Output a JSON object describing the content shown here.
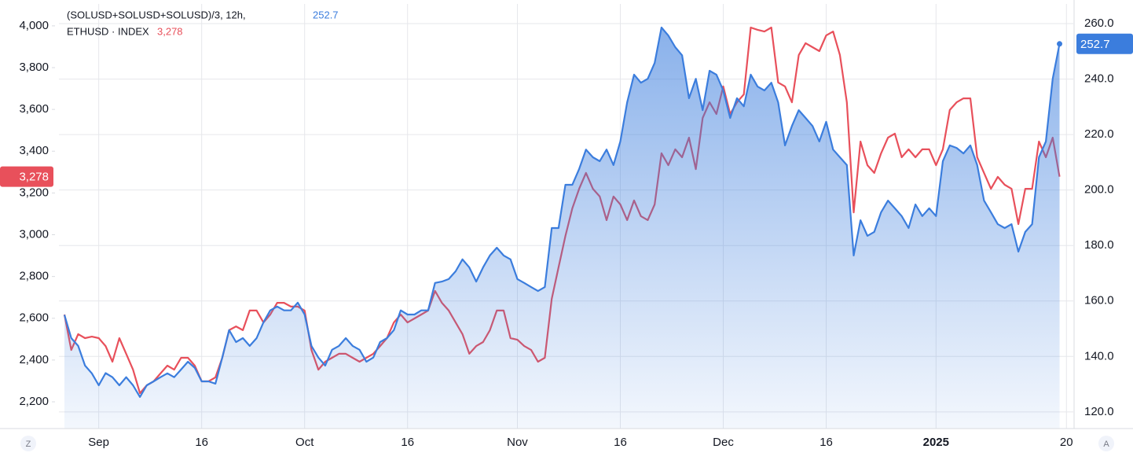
{
  "chart_data": {
    "type": "line",
    "x": [
      -5,
      -4,
      -3,
      -2,
      -1,
      0,
      1,
      2,
      3,
      4,
      5,
      6,
      7,
      8,
      9,
      10,
      11,
      12,
      13,
      14,
      15,
      16,
      17,
      18,
      19,
      20,
      21,
      22,
      23,
      24,
      25,
      26,
      27,
      28,
      29,
      30,
      31,
      32,
      33,
      34,
      35,
      36,
      37,
      38,
      39,
      40,
      41,
      42,
      43,
      44,
      45,
      46,
      47,
      48,
      49,
      50,
      51,
      52,
      53,
      54,
      55,
      56,
      57,
      58,
      59,
      60,
      61,
      62,
      63,
      64,
      65,
      66,
      67,
      68,
      69,
      70,
      71,
      72,
      73,
      74,
      75,
      76,
      77,
      78,
      79,
      80,
      81,
      82,
      83,
      84,
      85,
      86,
      87,
      88,
      89,
      90,
      91,
      92,
      93,
      94,
      95,
      96,
      97,
      98,
      99,
      100,
      101,
      102,
      103,
      104,
      105,
      106,
      107,
      108,
      109,
      110,
      111,
      112,
      113,
      114,
      115,
      116,
      117,
      118,
      119,
      120,
      121,
      122,
      123,
      124,
      125,
      126,
      127,
      128,
      129,
      130,
      131,
      132,
      133,
      134,
      135,
      136,
      137,
      138,
      139,
      140
    ],
    "series": [
      {
        "name": "ETHUSD · INDEX",
        "color": "#e8505b",
        "axis": "y",
        "values": [
          2618,
          2448,
          2524,
          2505,
          2512,
          2505,
          2467,
          2392,
          2505,
          2430,
          2354,
          2241,
          2279,
          2298,
          2336,
          2373,
          2354,
          2411,
          2411,
          2373,
          2298,
          2298,
          2317,
          2411,
          2543,
          2561,
          2543,
          2637,
          2637,
          2580,
          2618,
          2674,
          2674,
          2656,
          2656,
          2637,
          2448,
          2354,
          2392,
          2411,
          2430,
          2430,
          2411,
          2392,
          2411,
          2430,
          2467,
          2505,
          2580,
          2618,
          2580,
          2599,
          2618,
          2637,
          2731,
          2674,
          2637,
          2580,
          2524,
          2430,
          2467,
          2486,
          2543,
          2637,
          2637,
          2505,
          2497,
          2467,
          2448,
          2392,
          2411,
          2693,
          2844,
          2994,
          3126,
          3220,
          3296,
          3220,
          3183,
          3070,
          3183,
          3145,
          3070,
          3164,
          3089,
          3070,
          3145,
          3390,
          3333,
          3409,
          3371,
          3465,
          3314,
          3559,
          3634,
          3578,
          3710,
          3578,
          3634,
          3672,
          3992,
          3981,
          3973,
          3992,
          3729,
          3710,
          3634,
          3860,
          3917,
          3898,
          3879,
          3954,
          3973,
          3860,
          3634,
          3107,
          3446,
          3333,
          3296,
          3390,
          3465,
          3484,
          3371,
          3409,
          3371,
          3409,
          3409,
          3333,
          3409,
          3597,
          3634,
          3653,
          3653,
          3371,
          3296,
          3220,
          3277,
          3239,
          3220,
          3051,
          3220,
          3220,
          3446,
          3371,
          3465,
          3278
        ],
        "value_labels": [
          null,
          null,
          null,
          null,
          null,
          null,
          null,
          null,
          null,
          null,
          null,
          null,
          null,
          null,
          null,
          null,
          null,
          null,
          null,
          null,
          null,
          null,
          null,
          null,
          null,
          null,
          null,
          null,
          null,
          null,
          null,
          null,
          null,
          null,
          null,
          null,
          null,
          null,
          null,
          null,
          null,
          null,
          null,
          null,
          null,
          null,
          null,
          null,
          null,
          null,
          null,
          null,
          null,
          null,
          null,
          null,
          null,
          null,
          null,
          null,
          null,
          null,
          null,
          null,
          null,
          null,
          null,
          null,
          null,
          null,
          null,
          null,
          null,
          null,
          null,
          null,
          null,
          null,
          null,
          null,
          null,
          null,
          null,
          null,
          null,
          null,
          null,
          null,
          null,
          null,
          null,
          null,
          null,
          null,
          null,
          null,
          null,
          null,
          null,
          null,
          null,
          null,
          null,
          null,
          null,
          null,
          null,
          null,
          null,
          null,
          null,
          null,
          null,
          null,
          null,
          null,
          null,
          null,
          null,
          null,
          null,
          null,
          null,
          null,
          null,
          null,
          null,
          null,
          null,
          null,
          null,
          null,
          null,
          null,
          null,
          null,
          null,
          null,
          null,
          null,
          null,
          null,
          null,
          null,
          null,
          "3,278"
        ]
      },
      {
        "name": "(SOLUSD+SOLUSD+SOLUSD)/3, 12h,",
        "color": "#3b7ddd",
        "axis": "y2",
        "area": true,
        "values": [
          155,
          146.6,
          143.8,
          136.7,
          133.9,
          129.6,
          134,
          132.5,
          129.6,
          132.5,
          129.6,
          125.4,
          129.6,
          131,
          132.5,
          133.9,
          132.5,
          135.3,
          138.1,
          135.9,
          131,
          131,
          130.2,
          139.6,
          149.5,
          145.2,
          146.6,
          143.8,
          146.6,
          152.3,
          156.6,
          158,
          156.6,
          156.6,
          159.4,
          155.1,
          143.8,
          139.6,
          136.7,
          142.4,
          143.8,
          146.6,
          143.8,
          142.4,
          138.1,
          139.6,
          145.2,
          146.6,
          149.5,
          156.6,
          155.1,
          155.1,
          156.6,
          156.6,
          166.5,
          167,
          167.9,
          170.7,
          175,
          172.1,
          167,
          172.1,
          176.4,
          179.2,
          176.4,
          175,
          167.9,
          166.5,
          165,
          163.6,
          165,
          186.3,
          186.3,
          201.9,
          201.9,
          207.6,
          214.6,
          211.8,
          210.4,
          214.6,
          209,
          217.5,
          231.6,
          241.6,
          238.7,
          240.1,
          245.8,
          258.6,
          255.7,
          251.5,
          248.6,
          233.1,
          240.1,
          228.8,
          243,
          241.6,
          235.9,
          226,
          233.1,
          230.2,
          241.6,
          237.3,
          235.9,
          238.7,
          231.6,
          216.1,
          223.1,
          228.8,
          226,
          223.1,
          217.5,
          224.6,
          214.6,
          211.8,
          209,
          176.4,
          189.1,
          183.5,
          184.9,
          192,
          196.2,
          193.4,
          190.6,
          186.3,
          194.8,
          190.6,
          193.4,
          190.6,
          210.4,
          216.1,
          215.2,
          213.2,
          216.1,
          209,
          196.2,
          192,
          187.7,
          186.3,
          187.7,
          177.8,
          184.9,
          187.7,
          211.8,
          217.5,
          240.1,
          252.7
        ]
      }
    ],
    "xlim": [
      -5.8,
      142
    ],
    "xticks": [
      {
        "value": 0,
        "label": "Sep"
      },
      {
        "value": 15,
        "label": "16"
      },
      {
        "value": 30,
        "label": "Oct"
      },
      {
        "value": 45,
        "label": "16"
      },
      {
        "value": 61,
        "label": "Nov"
      },
      {
        "value": 76,
        "label": "16"
      },
      {
        "value": 91,
        "label": "Dec"
      },
      {
        "value": 106,
        "label": "16"
      },
      {
        "value": 122,
        "label": "2025"
      },
      {
        "value": 141,
        "label": "20"
      }
    ],
    "ylim": [
      2072,
      4105
    ],
    "yticks": [
      {
        "value": 4000,
        "label": "4,000"
      },
      {
        "value": 3800,
        "label": "3,800"
      },
      {
        "value": 3600,
        "label": "3,600"
      },
      {
        "value": 3400,
        "label": "3,400"
      },
      {
        "value": 3200,
        "label": "3,200"
      },
      {
        "value": 3000,
        "label": "3,000"
      },
      {
        "value": 2800,
        "label": "2,800"
      },
      {
        "value": 2600,
        "label": "2,600"
      },
      {
        "value": 2400,
        "label": "2,400"
      },
      {
        "value": 2200,
        "label": "2,200"
      }
    ],
    "y2lim": [
      114,
      267.1
    ],
    "y2ticks": [
      {
        "value": 260,
        "label": "260.0"
      },
      {
        "value": 240,
        "label": "240.0"
      },
      {
        "value": 220,
        "label": "220.0"
      },
      {
        "value": 200,
        "label": "200.0"
      },
      {
        "value": 180,
        "label": "180.0"
      },
      {
        "value": 160,
        "label": "160.0"
      },
      {
        "value": 140,
        "label": "140.0"
      },
      {
        "value": 120,
        "label": "120.0"
      }
    ],
    "grid": true
  },
  "controls": [
    "Z",
    "A"
  ]
}
